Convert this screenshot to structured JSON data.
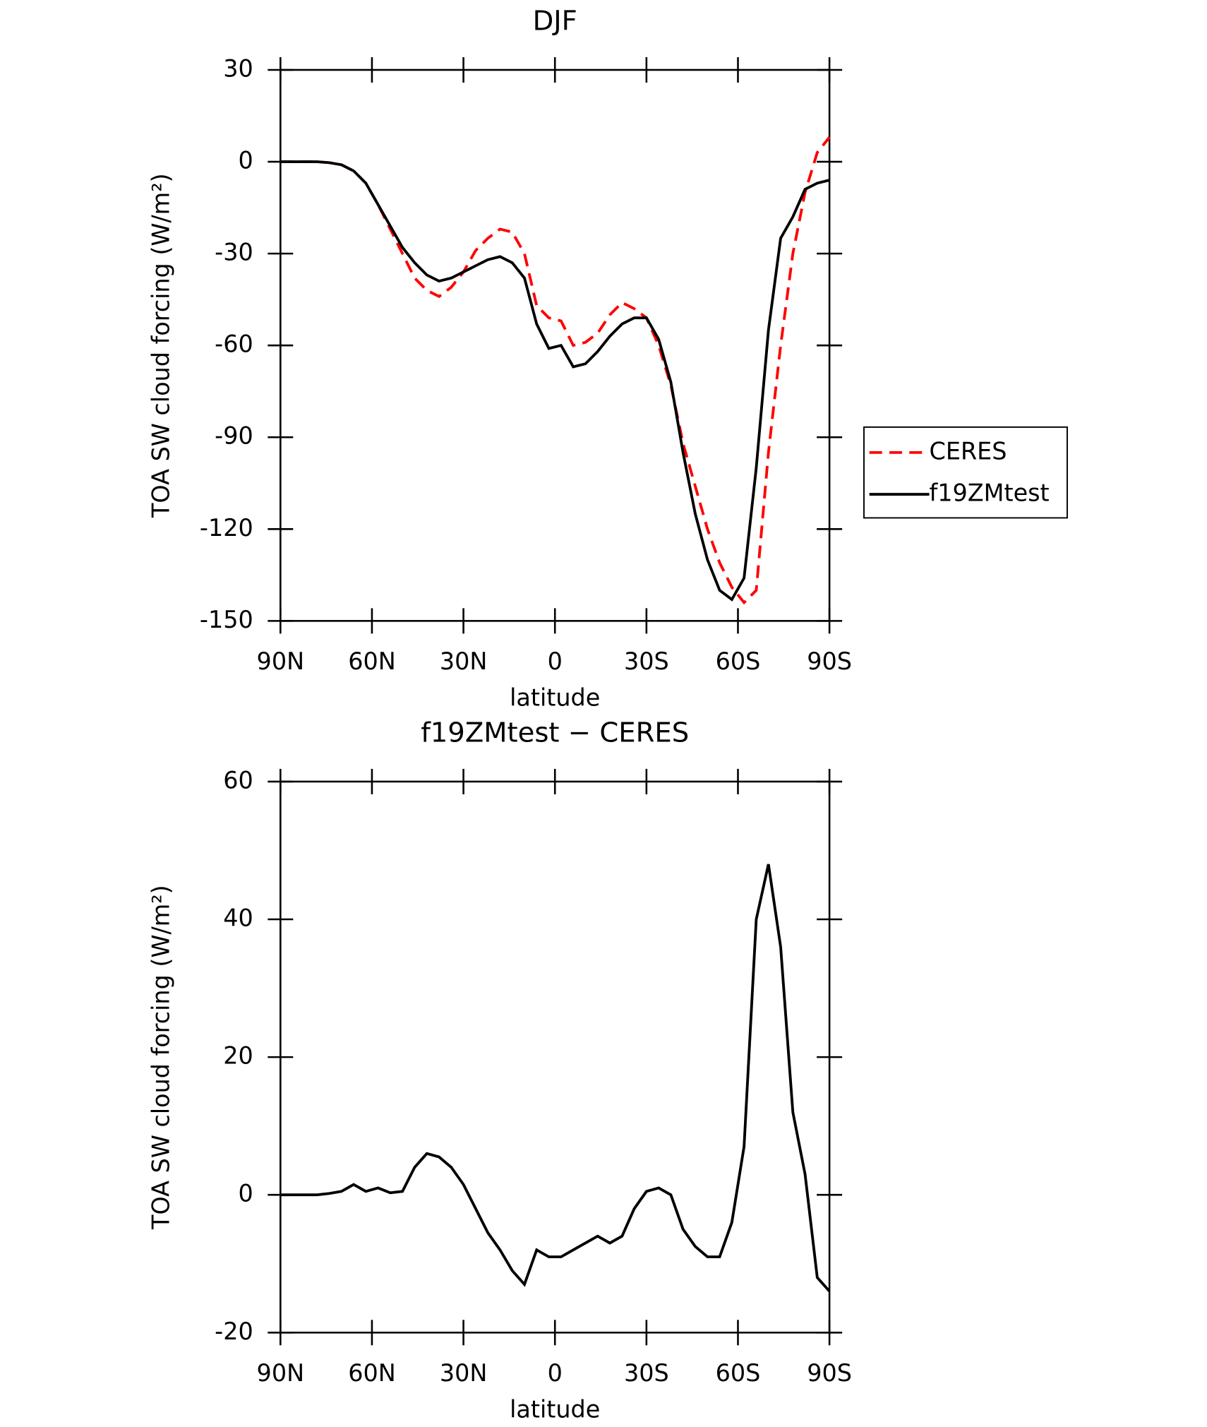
{
  "chart_data": [
    {
      "type": "line",
      "title": "DJF",
      "x_label": "latitude",
      "y_label": "TOA SW cloud forcing (W/m²)",
      "x": [
        90,
        86,
        82,
        78,
        74,
        70,
        66,
        62,
        58,
        54,
        50,
        46,
        42,
        38,
        34,
        30,
        26,
        22,
        18,
        14,
        10,
        6,
        2,
        -2,
        -6,
        -10,
        -14,
        -18,
        -22,
        -26,
        -30,
        -34,
        -38,
        -42,
        -46,
        -50,
        -54,
        -58,
        -62,
        -66,
        -70,
        -74,
        -78,
        -82,
        -86,
        -90
      ],
      "series": [
        {
          "name": "CERES",
          "color": "#ff0000",
          "linestyle": "dashed",
          "values": [
            0,
            0,
            0,
            0,
            -0.3,
            -1,
            -3,
            -7,
            -14,
            -22,
            -30,
            -38,
            -42,
            -44,
            -41,
            -36,
            -29,
            -25,
            -22,
            -23,
            -30,
            -47,
            -51,
            -52,
            -60,
            -59,
            -56,
            -50,
            -46,
            -48,
            -51,
            -60,
            -73,
            -92,
            -106,
            -120,
            -131,
            -139,
            -144,
            -140,
            -95,
            -60,
            -30,
            -10,
            3,
            8
          ]
        },
        {
          "name": "f19ZMtest",
          "color": "#000000",
          "linestyle": "solid",
          "values": [
            0,
            0,
            0,
            0,
            -0.3,
            -1,
            -3,
            -7,
            -14,
            -21,
            -28,
            -33,
            -37,
            -39,
            -38,
            -36,
            -34,
            -32,
            -31,
            -33,
            -38,
            -53,
            -61,
            -60,
            -67,
            -66,
            -62,
            -57,
            -53,
            -51,
            -51,
            -58,
            -72,
            -95,
            -115,
            -130,
            -140,
            -143,
            -136,
            -100,
            -55,
            -25,
            -18,
            -9,
            -7,
            -6
          ]
        }
      ],
      "xlim": [
        90,
        -90
      ],
      "xticks": [
        {
          "value": 90,
          "label": "90N"
        },
        {
          "value": 60,
          "label": "60N"
        },
        {
          "value": 30,
          "label": "30N"
        },
        0,
        {
          "value": -30,
          "label": "30S"
        },
        {
          "value": -60,
          "label": "60S"
        },
        {
          "value": -90,
          "label": "90S"
        }
      ],
      "ylim": [
        -150,
        30
      ],
      "yticks": [
        -150,
        -120,
        -90,
        -60,
        -30,
        0,
        30
      ],
      "legend": "right"
    },
    {
      "type": "line",
      "title": "f19ZMtest − CERES",
      "x_label": "latitude",
      "y_label": "TOA SW cloud forcing (W/m²)",
      "x": [
        90,
        86,
        82,
        78,
        74,
        70,
        66,
        62,
        58,
        54,
        50,
        46,
        42,
        38,
        34,
        30,
        26,
        22,
        18,
        14,
        10,
        6,
        2,
        -2,
        -6,
        -10,
        -14,
        -18,
        -22,
        -26,
        -30,
        -34,
        -38,
        -42,
        -46,
        -50,
        -54,
        -58,
        -62,
        -66,
        -70,
        -74,
        -78,
        -82,
        -86,
        -90
      ],
      "series": [
        {
          "color": "#000000",
          "linestyle": "solid",
          "values": [
            0,
            0,
            0,
            0,
            0.2,
            0.5,
            1.5,
            0.5,
            1,
            0.3,
            0.5,
            4,
            6,
            5.5,
            4,
            1.5,
            -2,
            -5.5,
            -8,
            -11,
            -13,
            -8,
            -9,
            -9,
            -8,
            -7,
            -6,
            -7,
            -6,
            -2,
            0.5,
            1,
            0,
            -5,
            -7.5,
            -9,
            -9,
            -4,
            7,
            40,
            48,
            36,
            12,
            3,
            -12,
            -14
          ]
        }
      ],
      "xlim": [
        90,
        -90
      ],
      "xticks": [
        {
          "value": 90,
          "label": "90N"
        },
        {
          "value": 60,
          "label": "60N"
        },
        {
          "value": 30,
          "label": "30N"
        },
        0,
        {
          "value": -30,
          "label": "30S"
        },
        {
          "value": -60,
          "label": "60S"
        },
        {
          "value": -90,
          "label": "90S"
        }
      ],
      "ylim": [
        -20,
        60
      ],
      "yticks": [
        -20,
        0,
        20,
        40,
        60
      ]
    }
  ]
}
